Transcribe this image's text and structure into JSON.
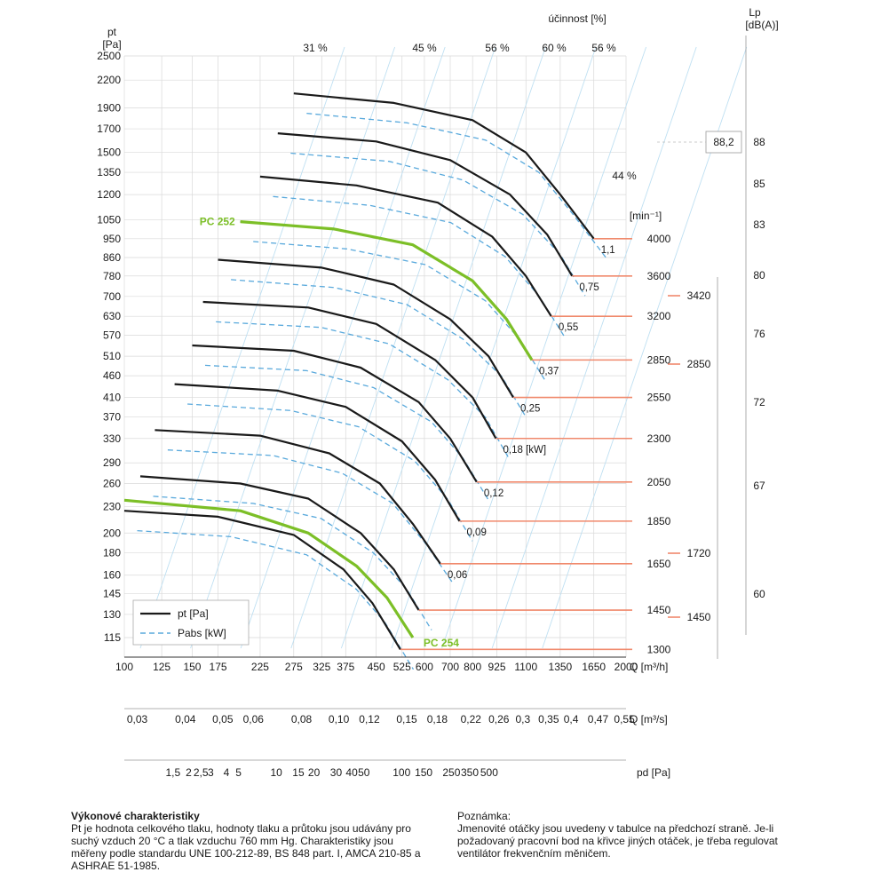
{
  "chart_data": {
    "type": "line",
    "y_axis": {
      "label": "pt",
      "unit": "[Pa]",
      "ticks": [
        "2500",
        "2200",
        "1900",
        "1700",
        "1500",
        "1350",
        "1200",
        "1050",
        "950",
        "860",
        "780",
        "700",
        "630",
        "570",
        "510",
        "460",
        "410",
        "370",
        "330",
        "290",
        "260",
        "230",
        "200",
        "180",
        "160",
        "145",
        "130",
        "115"
      ]
    },
    "x_axis_flow_m3h": {
      "label": "Q [m³/h]",
      "ticks": [
        100,
        125,
        150,
        175,
        225,
        275,
        325,
        375,
        450,
        525,
        600,
        700,
        800,
        925,
        1100,
        1350,
        1650,
        2000
      ]
    },
    "x_axis_flow_m3s": {
      "label": "Q [m³/s]",
      "ticks": [
        "0,03",
        "0,04",
        "0,05",
        "0,06",
        "0,08",
        "0,10",
        "0,12",
        "0,15",
        "0,18",
        "0,22",
        "0,26",
        "0,3",
        "0,35",
        "0,4",
        "0,47",
        "0,55"
      ]
    },
    "x_axis_pd": {
      "label": "pd [Pa]",
      "ticks": [
        "1,5",
        "2",
        "2,5",
        "3",
        "4",
        "5",
        "10",
        "15",
        "20",
        "30",
        "40",
        "50",
        "100",
        "150",
        "250",
        "350",
        "500"
      ]
    },
    "efficiency": {
      "label": "účinnost [%]",
      "top_labels": [
        "31 %",
        "45 %",
        "56 %",
        "60 %",
        "56 %"
      ],
      "side_label": "44 %"
    },
    "speed_label": "[min⁻¹]",
    "speeds": [
      {
        "rpm": "4000",
        "power": "1,1"
      },
      {
        "rpm": "3600",
        "power": "0,75"
      },
      {
        "rpm": "3200",
        "power": "0,55"
      },
      {
        "rpm": "2850",
        "power": "0,37"
      },
      {
        "rpm": "2550",
        "power": "0,25"
      },
      {
        "rpm": "2300",
        "power": "0,18 [kW]"
      },
      {
        "rpm": "2050",
        "power": "0,12"
      },
      {
        "rpm": "1850",
        "power": "0,09"
      },
      {
        "rpm": "1650",
        "power": "0,06"
      },
      {
        "rpm": "1450",
        "power": ""
      },
      {
        "rpm": "1300",
        "power": ""
      }
    ],
    "curves": [
      {
        "rpm": 4000,
        "q": [
          275,
          500,
          800,
          1100,
          1350,
          1650
        ],
        "pt": [
          2050,
          1950,
          1780,
          1500,
          1200,
          950
        ]
      },
      {
        "rpm": 3600,
        "q": [
          250,
          450,
          700,
          1000,
          1250,
          1450
        ],
        "pt": [
          1660,
          1590,
          1440,
          1200,
          970,
          780
        ]
      },
      {
        "rpm": 3200,
        "q": [
          225,
          400,
          650,
          900,
          1100,
          1280
        ],
        "pt": [
          1320,
          1260,
          1150,
          960,
          780,
          630
        ]
      },
      {
        "rpm": 2850,
        "q": [
          200,
          350,
          560,
          800,
          980,
          1140
        ],
        "pt": [
          1040,
          1000,
          920,
          760,
          620,
          500
        ]
      },
      {
        "rpm": 2550,
        "q": [
          175,
          325,
          500,
          700,
          880,
          1020
        ],
        "pt": [
          850,
          815,
          745,
          620,
          510,
          410
        ]
      },
      {
        "rpm": 2300,
        "q": [
          160,
          300,
          450,
          640,
          800,
          920
        ],
        "pt": [
          680,
          660,
          605,
          500,
          410,
          330
        ]
      },
      {
        "rpm": 2050,
        "q": [
          150,
          275,
          410,
          580,
          700,
          820
        ],
        "pt": [
          540,
          525,
          480,
          400,
          330,
          262
        ]
      },
      {
        "rpm": 1850,
        "q": [
          135,
          250,
          375,
          525,
          640,
          740
        ],
        "pt": [
          440,
          425,
          390,
          325,
          265,
          213
        ]
      },
      {
        "rpm": 1650,
        "q": [
          120,
          225,
          340,
          460,
          560,
          660
        ],
        "pt": [
          345,
          335,
          305,
          260,
          210,
          170
        ]
      },
      {
        "rpm": 1450,
        "q": [
          110,
          200,
          300,
          410,
          500,
          580
        ],
        "pt": [
          270,
          260,
          240,
          200,
          165,
          133
        ]
      },
      {
        "rpm": 1300,
        "q": [
          100,
          175,
          275,
          370,
          440,
          520
        ],
        "pt": [
          225,
          218,
          198,
          165,
          138,
          108
        ]
      }
    ],
    "highlighted_curves": [
      {
        "name": "PC 252",
        "q": [
          200,
          350,
          560,
          800,
          980,
          1140
        ],
        "pt": [
          1040,
          1000,
          920,
          760,
          620,
          500
        ]
      },
      {
        "name": "PC 254",
        "q": [
          100,
          200,
          300,
          400,
          480,
          560
        ],
        "pt": [
          238,
          225,
          200,
          168,
          142,
          115
        ]
      }
    ],
    "noise_axis": {
      "label": "Lp",
      "unit": "[dB(A)]",
      "values": [
        "88",
        "85",
        "83",
        "80",
        "76",
        "72",
        "67",
        "60"
      ],
      "callout": "88,2"
    },
    "motor_speeds": [
      "3420",
      "2850",
      "1720",
      "1450"
    ],
    "legend": [
      {
        "label": "pt [Pa]",
        "style": "solid"
      },
      {
        "label": "Pabs [kW]",
        "style": "dashed"
      }
    ],
    "grid": true
  },
  "notes": {
    "left_title": "Výkonové charakteristiky",
    "left_body": "Pt je hodnota celkového tlaku, hodnoty tlaku a průtoku jsou udávány pro suchý vzduch 20 °C a tlak vzduchu 760 mm Hg. Charakteristiky jsou měřeny podle standardu UNE 100-212-89, BS 848 part. I, AMCA 210-85 a ASHRAE 51-1985.",
    "right_title": "Poznámka:",
    "right_body": "Jmenovité otáčky jsou uvedeny v tabulce na předchozí straně. Je-li požadovaný pracovní bod na křivce jiných otáček, je třeba regulovat ventilátor frekvenčním měničem."
  },
  "colors": {
    "curve": "#1a1a1a",
    "highlight": "#7cbf27",
    "power": "#59a9dc",
    "speed_line": "#f0896c",
    "grid": "#d9d9d9",
    "diag": "#bfe0f2"
  }
}
